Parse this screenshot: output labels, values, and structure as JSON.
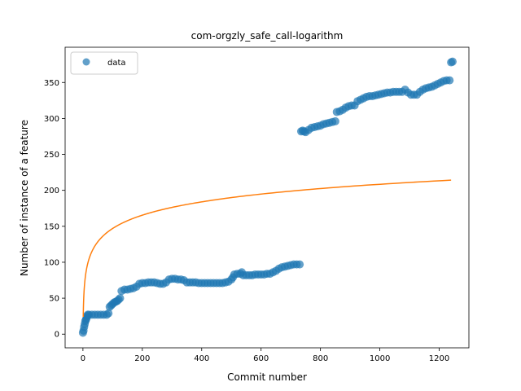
{
  "chart_data": {
    "type": "scatter",
    "title": "com-orgzly_safe_call-logarithm",
    "xlabel": "Commit number",
    "ylabel": "Number of instance of a feature",
    "xlim": [
      -60,
      1300
    ],
    "ylim": [
      -19,
      399
    ],
    "xticks": [
      0,
      200,
      400,
      600,
      800,
      1000,
      1200
    ],
    "yticks": [
      0,
      50,
      100,
      150,
      200,
      250,
      300,
      350
    ],
    "grid": false,
    "legend": {
      "entries": [
        "data"
      ],
      "placement": "top-left"
    },
    "colors": {
      "data": "#1f77b4",
      "fit": "#ff7f0e"
    },
    "series": [
      {
        "name": "data",
        "kind": "scatter",
        "points": [
          [
            0,
            2
          ],
          [
            2,
            5
          ],
          [
            4,
            10
          ],
          [
            6,
            14
          ],
          [
            8,
            18
          ],
          [
            10,
            20
          ],
          [
            12,
            22
          ],
          [
            14,
            25
          ],
          [
            16,
            27
          ],
          [
            20,
            27
          ],
          [
            30,
            27
          ],
          [
            40,
            27
          ],
          [
            50,
            27
          ],
          [
            60,
            27
          ],
          [
            70,
            27
          ],
          [
            80,
            27
          ],
          [
            86,
            29
          ],
          [
            90,
            38
          ],
          [
            95,
            40
          ],
          [
            100,
            42
          ],
          [
            105,
            44
          ],
          [
            110,
            45
          ],
          [
            115,
            46
          ],
          [
            120,
            48
          ],
          [
            125,
            50
          ],
          [
            130,
            60
          ],
          [
            140,
            62
          ],
          [
            150,
            62
          ],
          [
            160,
            63
          ],
          [
            170,
            64
          ],
          [
            180,
            66
          ],
          [
            190,
            70
          ],
          [
            200,
            71
          ],
          [
            210,
            71
          ],
          [
            220,
            72
          ],
          [
            230,
            72
          ],
          [
            240,
            72
          ],
          [
            250,
            71
          ],
          [
            260,
            70
          ],
          [
            270,
            70
          ],
          [
            280,
            72
          ],
          [
            290,
            76
          ],
          [
            300,
            77
          ],
          [
            310,
            77
          ],
          [
            320,
            76
          ],
          [
            330,
            76
          ],
          [
            340,
            75
          ],
          [
            350,
            72
          ],
          [
            360,
            72
          ],
          [
            370,
            72
          ],
          [
            380,
            72
          ],
          [
            390,
            71
          ],
          [
            400,
            71
          ],
          [
            410,
            71
          ],
          [
            420,
            71
          ],
          [
            430,
            71
          ],
          [
            440,
            71
          ],
          [
            450,
            71
          ],
          [
            460,
            71
          ],
          [
            470,
            71
          ],
          [
            480,
            72
          ],
          [
            490,
            73
          ],
          [
            500,
            76
          ],
          [
            505,
            79
          ],
          [
            510,
            83
          ],
          [
            520,
            84
          ],
          [
            530,
            84
          ],
          [
            535,
            86
          ],
          [
            540,
            82
          ],
          [
            550,
            82
          ],
          [
            560,
            82
          ],
          [
            570,
            82
          ],
          [
            580,
            83
          ],
          [
            590,
            83
          ],
          [
            600,
            83
          ],
          [
            610,
            83
          ],
          [
            620,
            84
          ],
          [
            630,
            84
          ],
          [
            640,
            86
          ],
          [
            650,
            88
          ],
          [
            660,
            91
          ],
          [
            670,
            93
          ],
          [
            680,
            94
          ],
          [
            690,
            95
          ],
          [
            700,
            96
          ],
          [
            710,
            97
          ],
          [
            720,
            97
          ],
          [
            730,
            97
          ],
          [
            735,
            282
          ],
          [
            740,
            283
          ],
          [
            745,
            282
          ],
          [
            750,
            281
          ],
          [
            760,
            284
          ],
          [
            770,
            287
          ],
          [
            780,
            288
          ],
          [
            790,
            289
          ],
          [
            800,
            290
          ],
          [
            810,
            292
          ],
          [
            820,
            293
          ],
          [
            830,
            294
          ],
          [
            840,
            295
          ],
          [
            850,
            296
          ],
          [
            855,
            309
          ],
          [
            865,
            310
          ],
          [
            875,
            312
          ],
          [
            885,
            315
          ],
          [
            895,
            317
          ],
          [
            905,
            318
          ],
          [
            915,
            318
          ],
          [
            925,
            324
          ],
          [
            935,
            326
          ],
          [
            945,
            328
          ],
          [
            955,
            330
          ],
          [
            965,
            331
          ],
          [
            975,
            331
          ],
          [
            985,
            332
          ],
          [
            995,
            333
          ],
          [
            1005,
            334
          ],
          [
            1015,
            335
          ],
          [
            1025,
            336
          ],
          [
            1035,
            336
          ],
          [
            1045,
            337
          ],
          [
            1055,
            337
          ],
          [
            1065,
            337
          ],
          [
            1075,
            337
          ],
          [
            1085,
            340
          ],
          [
            1095,
            336
          ],
          [
            1105,
            333
          ],
          [
            1115,
            333
          ],
          [
            1125,
            333
          ],
          [
            1135,
            337
          ],
          [
            1145,
            340
          ],
          [
            1155,
            342
          ],
          [
            1165,
            343
          ],
          [
            1175,
            344
          ],
          [
            1185,
            346
          ],
          [
            1195,
            348
          ],
          [
            1205,
            350
          ],
          [
            1215,
            352
          ],
          [
            1225,
            353
          ],
          [
            1235,
            353
          ],
          [
            1240,
            378
          ],
          [
            1245,
            379
          ]
        ]
      },
      {
        "name": "",
        "kind": "line",
        "model": "a + b*ln(x)",
        "a": 24,
        "b": 26.7,
        "x_range": [
          1,
          1240
        ]
      }
    ]
  }
}
